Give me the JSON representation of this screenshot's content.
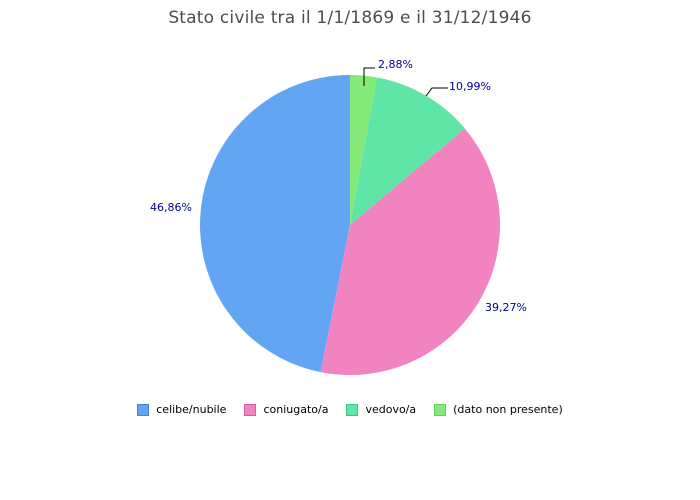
{
  "title": "Stato civile tra il 1/1/1869 e il 31/12/1946",
  "chart_data": {
    "type": "pie",
    "title": "Stato civile tra il 1/1/1869 e il 31/12/1946",
    "title_color": "#4D4D4D",
    "label_color": "#000099",
    "background_color": "#FFFFFF",
    "start_angle_deg": 0,
    "direction": "counterclockwise",
    "legend_position": "bottom",
    "slices": [
      {
        "label": "celibe/nubile",
        "value": 46.86,
        "display": "46,86%",
        "color": "#62A5F2",
        "border_color": "#4383D6"
      },
      {
        "label": "coniugato/a",
        "value": 39.27,
        "display": "39,27%",
        "color": "#F283C1",
        "border_color": "#D160A3"
      },
      {
        "label": "vedovo/a",
        "value": 10.99,
        "display": "10,99%",
        "color": "#5FE5A5",
        "border_color": "#3FC184"
      },
      {
        "label": "(dato non presente)",
        "value": 2.88,
        "display": "2,88%",
        "color": "#84E979",
        "border_color": "#63CE58"
      }
    ]
  }
}
